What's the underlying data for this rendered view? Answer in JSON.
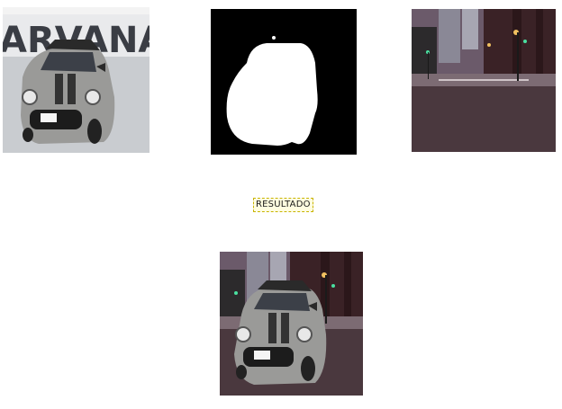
{
  "images": {
    "input_car": {
      "sign_text": "ARVANA"
    },
    "mask": {},
    "background": {},
    "result": {}
  },
  "result_label": "RESULTADO"
}
